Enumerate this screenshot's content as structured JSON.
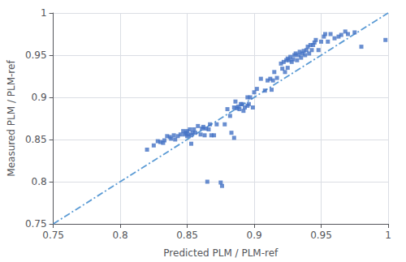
{
  "chart_data": {
    "type": "scatter",
    "xlabel": "Predicted PLM / PLM-ref",
    "ylabel": "Measured PLM / PLM-ref",
    "xlim": [
      0.75,
      1.0
    ],
    "ylim": [
      0.75,
      1.0
    ],
    "xticks": [
      0.75,
      0.8,
      0.85,
      0.9,
      0.95,
      1
    ],
    "yticks": [
      0.75,
      0.8,
      0.85,
      0.9,
      0.95,
      1
    ],
    "grid": true,
    "series": [
      {
        "type": "line",
        "color": "#5B9BD5",
        "line_style": "dashdot",
        "x": [
          0.75,
          1.0
        ],
        "values": [
          0.75,
          1.0
        ]
      },
      {
        "type": "scatter",
        "color": "#4472C4",
        "marker": "square",
        "x": [
          0.82,
          0.825,
          0.828,
          0.83,
          0.832,
          0.833,
          0.835,
          0.837,
          0.838,
          0.84,
          0.841,
          0.843,
          0.845,
          0.847,
          0.848,
          0.849,
          0.85,
          0.85,
          0.851,
          0.852,
          0.853,
          0.853,
          0.854,
          0.855,
          0.856,
          0.858,
          0.86,
          0.861,
          0.862,
          0.863,
          0.864,
          0.865,
          0.866,
          0.867,
          0.868,
          0.87,
          0.872,
          0.875,
          0.876,
          0.878,
          0.88,
          0.882,
          0.883,
          0.885,
          0.885,
          0.886,
          0.887,
          0.888,
          0.889,
          0.89,
          0.891,
          0.892,
          0.893,
          0.895,
          0.895,
          0.896,
          0.897,
          0.899,
          0.9,
          0.902,
          0.905,
          0.908,
          0.91,
          0.912,
          0.913,
          0.914,
          0.915,
          0.917,
          0.92,
          0.921,
          0.922,
          0.923,
          0.924,
          0.925,
          0.925,
          0.926,
          0.927,
          0.928,
          0.929,
          0.93,
          0.931,
          0.932,
          0.933,
          0.934,
          0.935,
          0.936,
          0.937,
          0.938,
          0.939,
          0.94,
          0.941,
          0.942,
          0.943,
          0.944,
          0.945,
          0.946,
          0.948,
          0.95,
          0.952,
          0.953,
          0.955,
          0.957,
          0.96,
          0.963,
          0.965,
          0.968,
          0.97,
          0.975,
          0.98,
          0.998
        ],
        "values": [
          0.838,
          0.843,
          0.848,
          0.847,
          0.846,
          0.849,
          0.854,
          0.853,
          0.851,
          0.855,
          0.85,
          0.854,
          0.856,
          0.86,
          0.856,
          0.858,
          0.86,
          0.854,
          0.856,
          0.862,
          0.855,
          0.845,
          0.858,
          0.862,
          0.858,
          0.866,
          0.856,
          0.863,
          0.865,
          0.855,
          0.863,
          0.8,
          0.862,
          0.868,
          0.855,
          0.855,
          0.868,
          0.799,
          0.795,
          0.868,
          0.886,
          0.878,
          0.858,
          0.888,
          0.852,
          0.895,
          0.887,
          0.889,
          0.886,
          0.892,
          0.892,
          0.884,
          0.888,
          0.9,
          0.89,
          0.892,
          0.9,
          0.888,
          0.906,
          0.91,
          0.922,
          0.908,
          0.92,
          0.922,
          0.909,
          0.92,
          0.93,
          0.923,
          0.94,
          0.934,
          0.942,
          0.93,
          0.944,
          0.946,
          0.935,
          0.944,
          0.948,
          0.942,
          0.945,
          0.95,
          0.952,
          0.944,
          0.95,
          0.954,
          0.947,
          0.952,
          0.955,
          0.95,
          0.956,
          0.96,
          0.952,
          0.962,
          0.956,
          0.962,
          0.965,
          0.968,
          0.956,
          0.966,
          0.972,
          0.975,
          0.966,
          0.975,
          0.97,
          0.972,
          0.974,
          0.978,
          0.975,
          0.977,
          0.96,
          0.968
        ]
      }
    ]
  }
}
